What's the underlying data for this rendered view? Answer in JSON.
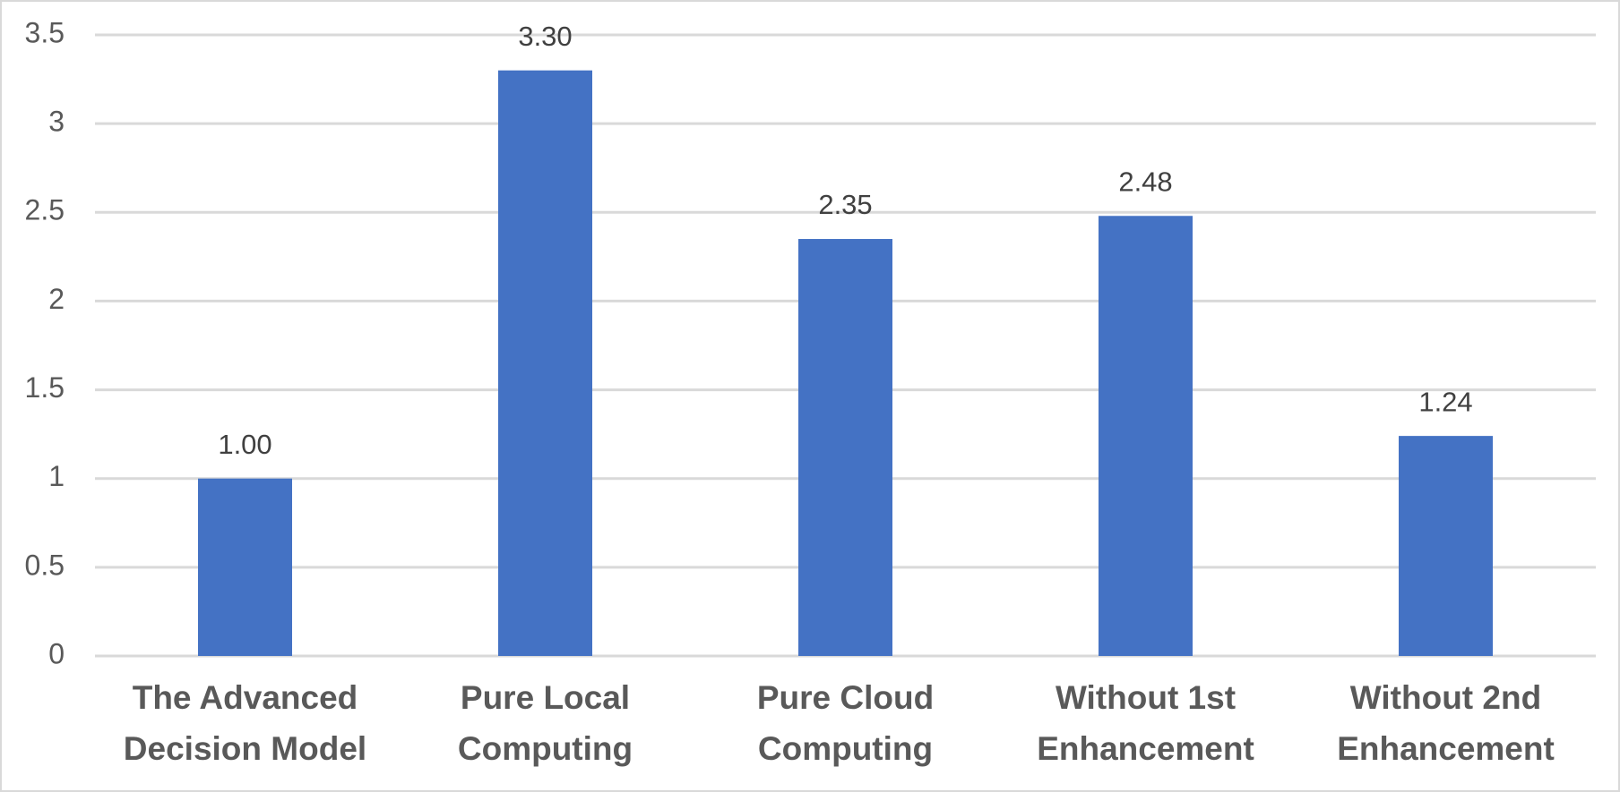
{
  "chart_data": {
    "type": "bar",
    "categories": [
      "The Advanced Decision Model",
      "Pure Local Computing",
      "Pure Cloud Computing",
      "Without 1st Enhancement",
      "Without 2nd Enhancement"
    ],
    "values": [
      1,
      3.3,
      2.35,
      2.48,
      1.24
    ],
    "value_labels": [
      "1.00",
      "3.30",
      "2.35",
      "2.48",
      "1.24"
    ],
    "color": "#4472c4",
    "ylim": [
      0,
      3.5
    ],
    "yticks": [
      0,
      0.5,
      1,
      1.5,
      2,
      2.5,
      3,
      3.5
    ],
    "grid": true
  }
}
